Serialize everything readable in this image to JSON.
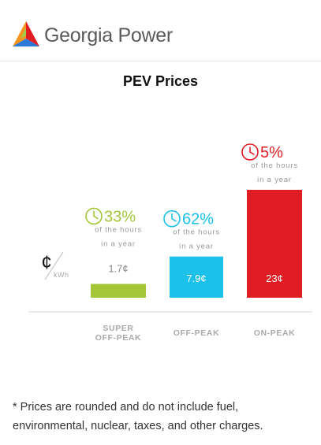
{
  "header": {
    "brand": "Georgia Power"
  },
  "chart_data": {
    "type": "bar",
    "title": "PEV Prices",
    "unit_symbol": "¢",
    "unit_label": "kWh",
    "categories": [
      "SUPER OFF-PEAK",
      "OFF-PEAK",
      "ON-PEAK"
    ],
    "category_lines": [
      [
        "SUPER",
        "OFF-PEAK"
      ],
      [
        "OFF-PEAK"
      ],
      [
        "ON-PEAK"
      ]
    ],
    "values": [
      1.7,
      7.9,
      23
    ],
    "value_labels": [
      "1.7¢",
      "7.9¢",
      "23¢"
    ],
    "hours_percent": [
      "33%",
      "62%",
      "5%"
    ],
    "hours_note": [
      "of the hours",
      "in a year"
    ],
    "colors": [
      "#a4c639",
      "#1cc1ea",
      "#e11d24"
    ],
    "ylim": [
      0,
      23
    ]
  },
  "footnote": "* Prices are rounded and do not include fuel, environmental, nuclear, taxes, and other charges."
}
